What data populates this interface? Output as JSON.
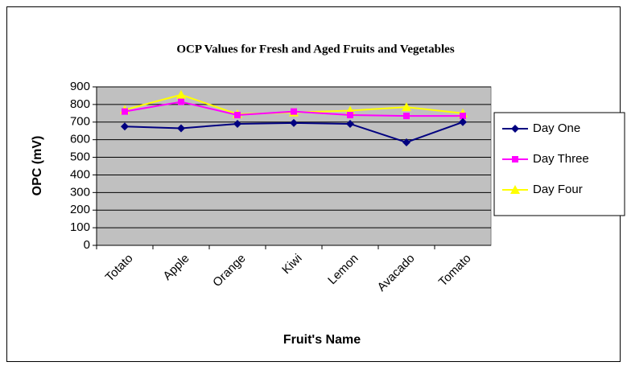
{
  "chart_data": {
    "type": "line",
    "title": "OCP Values for Fresh and Aged  Fruits and Vegetables",
    "x_label": "Fruit's Name",
    "y_label": "OPC (mV)",
    "categories": [
      "Totato",
      "Apple",
      "Orange",
      "Kiwi",
      "Lemon",
      "Avacado",
      "Tomato"
    ],
    "series": [
      {
        "name": "Day One",
        "color": "#000080",
        "marker": "diamond",
        "values": [
          675,
          665,
          690,
          695,
          690,
          585,
          700
        ]
      },
      {
        "name": "Day Three",
        "color": "#ff00ff",
        "marker": "square",
        "values": [
          760,
          815,
          740,
          760,
          740,
          735,
          735
        ]
      },
      {
        "name": "Day Four",
        "color": "#ffff00",
        "marker": "triangle",
        "values": [
          770,
          855,
          745,
          755,
          765,
          785,
          750
        ]
      }
    ],
    "ylim": [
      0,
      900
    ],
    "yticks": [
      0,
      100,
      200,
      300,
      400,
      500,
      600,
      700,
      800,
      900
    ],
    "grid": true,
    "legend": "right",
    "plot_background": "#c0c0c0"
  }
}
